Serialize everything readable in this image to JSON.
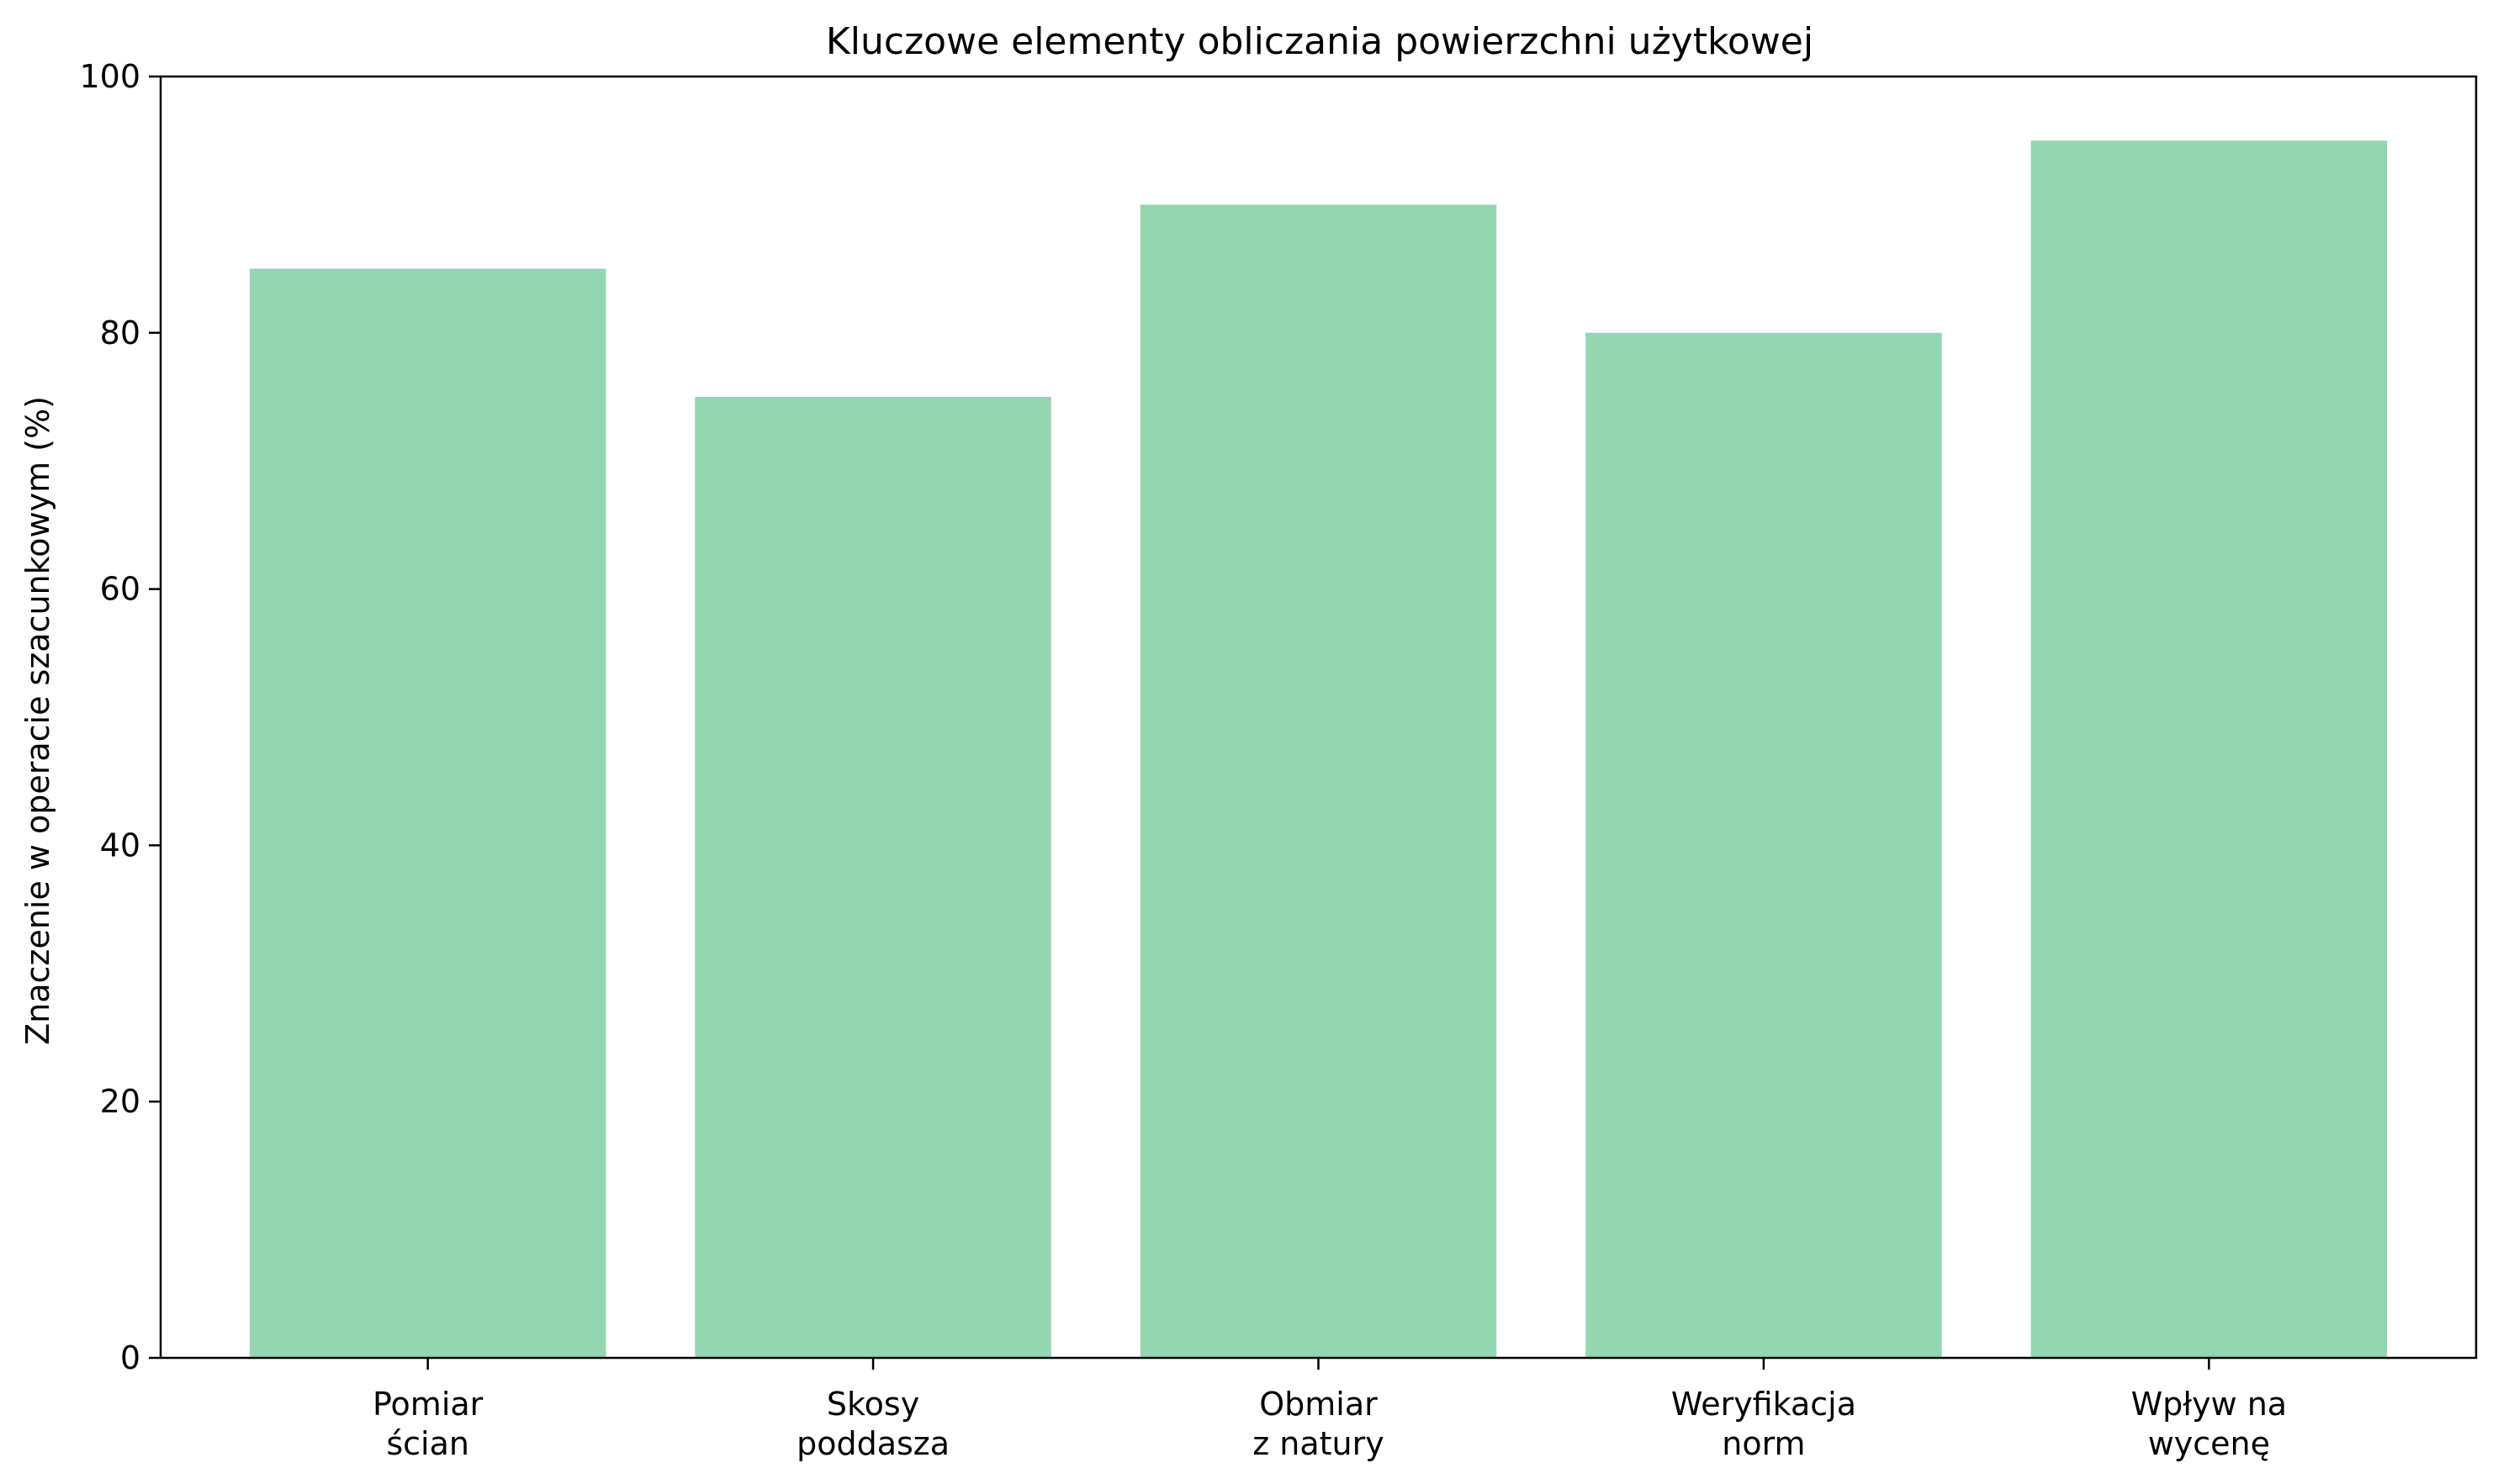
{
  "chart_data": {
    "type": "bar",
    "title": "Kluczowe elementy obliczania powierzchni użytkowej",
    "xlabel": "",
    "ylabel": "Znaczenie w operacie szacunkowym (%)",
    "ylim": [
      0,
      100
    ],
    "yticks": [
      "0",
      "20",
      "40",
      "60",
      "80",
      "100"
    ],
    "categories": [
      [
        "Pomiar",
        "ścian"
      ],
      [
        "Skosy",
        "poddasza"
      ],
      [
        "Obmiar",
        "z natury"
      ],
      [
        "Weryfikacja",
        "norm"
      ],
      [
        "Wpływ na",
        "wycenę"
      ]
    ],
    "values": [
      85,
      75,
      90,
      80,
      95
    ],
    "bar_color": "#96d5b1",
    "grid": false,
    "legend": "none"
  }
}
